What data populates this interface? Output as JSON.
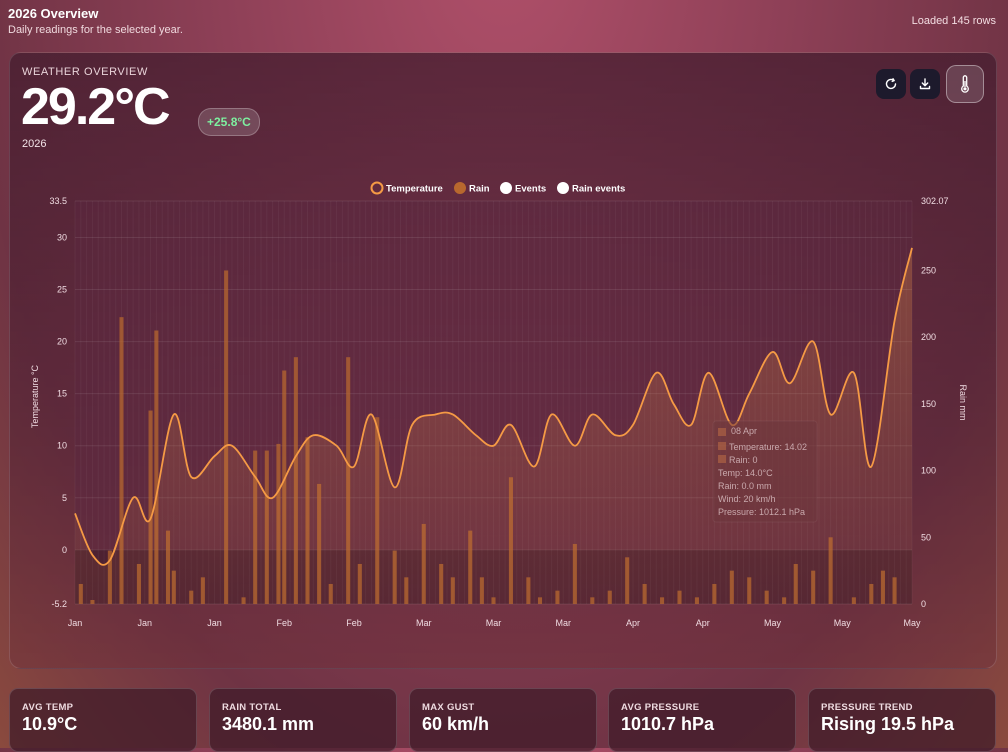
{
  "header": {
    "title": "2026 Overview",
    "subtitle": "Daily readings for the selected year.",
    "loaded": "Loaded 145 rows"
  },
  "card": {
    "label": "WEATHER OVERVIEW",
    "value": "29.2°C",
    "delta": "+25.8°C",
    "year": "2026",
    "buttons": {
      "refresh": "refresh-icon",
      "download": "download-icon",
      "theme": "thermometer-icon"
    }
  },
  "chart_data": {
    "type": "line",
    "legend": [
      "Temperature",
      "Rain",
      "Events",
      "Rain events"
    ],
    "legend_position": "top-center",
    "y_left": {
      "label": "Temperature °C",
      "ticks": [
        "33.5",
        "30",
        "25",
        "20",
        "15",
        "10",
        "5",
        "0",
        "-5.2"
      ],
      "range": [
        -5.2,
        33.5
      ]
    },
    "y_right": {
      "label": "Rain mm",
      "ticks": [
        "302.07",
        "250",
        "200",
        "150",
        "100",
        "50",
        "0"
      ],
      "range": [
        0,
        302.07
      ]
    },
    "x_ticks": [
      "Jan",
      "Jan",
      "Jan",
      "Feb",
      "Feb",
      "Mar",
      "Mar",
      "Mar",
      "Apr",
      "Apr",
      "May",
      "May",
      "May"
    ],
    "x_range": [
      0,
      144
    ],
    "grid": true,
    "series": [
      {
        "name": "Temperature",
        "type": "line",
        "color": "#f59a45",
        "x": [
          0,
          3,
          6,
          10,
          13,
          17,
          20,
          24,
          27,
          31,
          34,
          38,
          41,
          45,
          48,
          51,
          55,
          58,
          62,
          65,
          69,
          72,
          75,
          79,
          82,
          86,
          89,
          93,
          96,
          100,
          103,
          106,
          109,
          113,
          116,
          120,
          123,
          127,
          130,
          134,
          137,
          141,
          144
        ],
        "y": [
          3.5,
          -0.5,
          -1,
          5,
          3,
          13,
          7,
          9,
          10,
          7,
          5,
          9,
          11,
          10,
          8,
          13,
          6,
          12,
          13,
          13,
          11,
          10,
          12,
          8,
          13,
          10,
          13,
          11,
          12,
          17,
          14,
          12,
          17,
          12,
          15,
          19,
          16,
          20,
          13,
          17,
          8,
          22,
          29
        ]
      },
      {
        "name": "Rain",
        "type": "bar",
        "color": "#b8682e",
        "x": [
          1,
          3,
          6,
          8,
          11,
          13,
          14,
          16,
          17,
          20,
          22,
          26,
          29,
          31,
          33,
          35,
          36,
          38,
          40,
          42,
          44,
          47,
          49,
          52,
          55,
          57,
          60,
          63,
          65,
          68,
          70,
          72,
          75,
          78,
          80,
          83,
          86,
          89,
          92,
          95,
          98,
          101,
          104,
          107,
          110,
          113,
          116,
          119,
          122,
          124,
          127,
          130,
          134,
          137,
          139,
          141
        ],
        "values": [
          15,
          3,
          40,
          215,
          30,
          145,
          205,
          55,
          25,
          10,
          20,
          250,
          5,
          115,
          115,
          120,
          175,
          185,
          125,
          90,
          15,
          185,
          30,
          140,
          40,
          20,
          60,
          30,
          20,
          55,
          20,
          5,
          95,
          20,
          5,
          10,
          45,
          5,
          10,
          35,
          15,
          5,
          10,
          5,
          15,
          25,
          20,
          10,
          5,
          30,
          25,
          50,
          5,
          15,
          25,
          20
        ]
      },
      {
        "name": "Events",
        "type": "marker",
        "color": "#ffffff"
      },
      {
        "name": "Rain events",
        "type": "marker",
        "color": "#ffffff"
      }
    ],
    "tooltip": {
      "date": "08 Apr",
      "lines": [
        "Temperature: 14.02",
        "Rain: 0",
        "Temp: 14.0°C",
        "Rain: 0.0 mm",
        "Wind: 20 km/h",
        "Pressure: 1012.1 hPa"
      ]
    }
  },
  "stats": [
    {
      "label": "AVG TEMP",
      "value": "10.9°C"
    },
    {
      "label": "RAIN TOTAL",
      "value": "3480.1 mm"
    },
    {
      "label": "MAX GUST",
      "value": "60 km/h"
    },
    {
      "label": "AVG PRESSURE",
      "value": "1010.7 hPa"
    },
    {
      "label": "PRESSURE TREND",
      "value": "Rising 19.5 hPa"
    }
  ]
}
